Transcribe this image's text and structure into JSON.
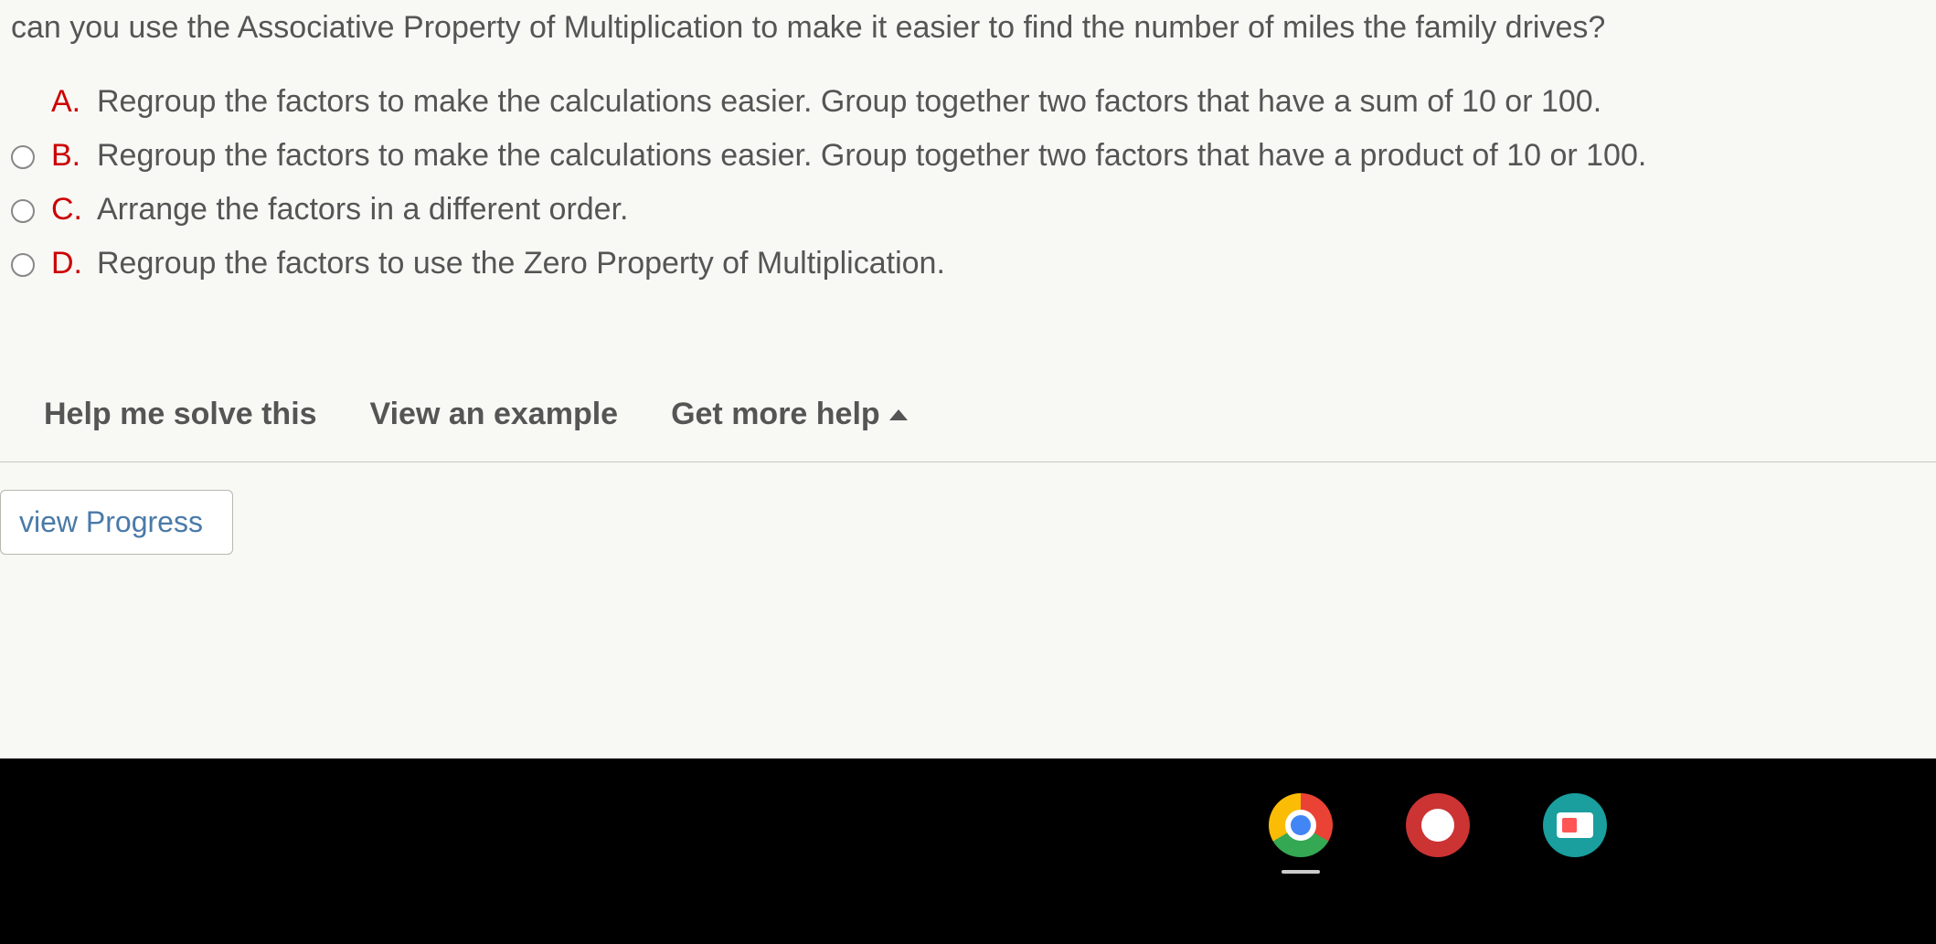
{
  "question": {
    "text": "can you use the Associative Property of Multiplication to make it easier to find the number of miles the family drives?"
  },
  "options": [
    {
      "letter": "A.",
      "text": "Regroup the factors to make the calculations easier. Group together two factors that have a sum of 10 or 100."
    },
    {
      "letter": "B.",
      "text": "Regroup the factors to make the calculations easier. Group together two factors that have a product of 10 or 100."
    },
    {
      "letter": "C.",
      "text": "Arrange the factors in a different order."
    },
    {
      "letter": "D.",
      "text": "Regroup the factors to use the Zero Property of Multiplication."
    }
  ],
  "help": {
    "solve": "Help me solve this",
    "example": "View an example",
    "more": "Get more help"
  },
  "progress": {
    "label": "view Progress"
  },
  "colors": {
    "background": "#f8f8f5",
    "text": "#555555",
    "option_letter": "#cc0000",
    "link": "#4a7aa8",
    "taskbar": "#000000"
  }
}
